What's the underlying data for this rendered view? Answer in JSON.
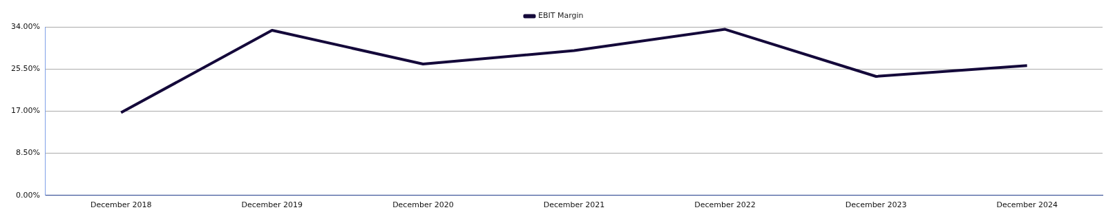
{
  "chart_data": {
    "type": "line",
    "categories": [
      "December 2018",
      "December 2019",
      "December 2020",
      "December 2021",
      "December 2022",
      "December 2023",
      "December 2024"
    ],
    "series": [
      {
        "name": "EBIT Margin",
        "color": "#14093a",
        "values": [
          16.7,
          33.3,
          26.5,
          29.2,
          33.5,
          24.0,
          26.2
        ]
      }
    ],
    "ylim": [
      0,
      34
    ],
    "yticks": [
      {
        "value": 0,
        "label": "0.00%"
      },
      {
        "value": 8.5,
        "label": "8.50%"
      },
      {
        "value": 17,
        "label": "17.00%"
      },
      {
        "value": 25.5,
        "label": "25.50%"
      },
      {
        "value": 34,
        "label": "34.00%"
      }
    ],
    "grid": "y",
    "legend": "top",
    "marker": "none",
    "line_style": "solid"
  }
}
